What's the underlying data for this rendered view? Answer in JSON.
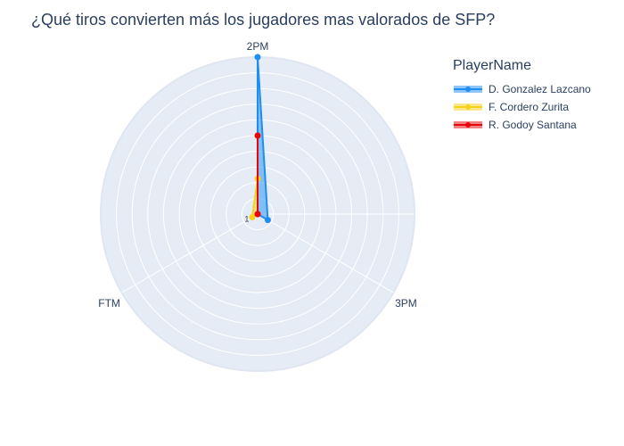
{
  "chart_data": {
    "type": "radar",
    "title": "¿Qué tiros convierten más los jugadores mas valorados de SFP?",
    "axes": [
      "2PM",
      "3PM",
      "FTM"
    ],
    "radial_tick_label": "1",
    "legend": {
      "title": "PlayerName",
      "placement": "top-right"
    },
    "series": [
      {
        "name": "D. Gonzalez Lazcano",
        "color": "#1f8ef1",
        "values": [
          20,
          1.5,
          0
        ]
      },
      {
        "name": "F. Cordero Zurita",
        "color": "#f7d21c",
        "values": [
          4.5,
          0,
          0.8
        ]
      },
      {
        "name": "R. Godoy Santana",
        "color": "#e8060b",
        "values": [
          10,
          0,
          0
        ]
      }
    ],
    "polar_background": "#e5ecf6",
    "gridline_color": "#ffffff"
  }
}
